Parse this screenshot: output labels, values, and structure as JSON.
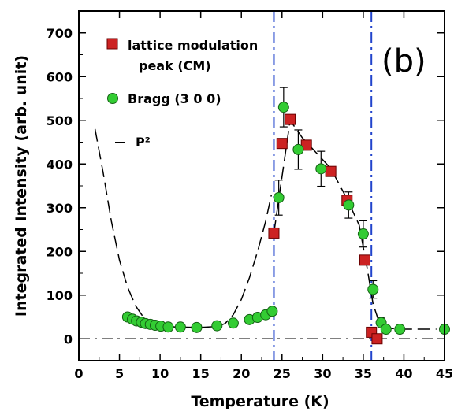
{
  "chart_data": {
    "type": "scatter",
    "panel_label": "(b)",
    "xlabel": "Temperature (K)",
    "ylabel": "Integrated Intensity (arb. unit)",
    "xlim": [
      0,
      45
    ],
    "ylim": [
      -50,
      750
    ],
    "xticks": [
      0,
      5,
      10,
      15,
      20,
      25,
      30,
      35,
      40,
      45
    ],
    "yticks": [
      0,
      100,
      200,
      300,
      400,
      500,
      600,
      700
    ],
    "vertical_lines": [
      24,
      36
    ],
    "horizontal_line": 0,
    "legend": {
      "placement": "top-left"
    },
    "colors": {
      "cm": "#cc2222",
      "bragg": "#33cc33",
      "vline": "#2244cc"
    },
    "series": [
      {
        "name": "lattice modulation",
        "name_line2": "peak (CM)",
        "marker": "square",
        "points": [
          {
            "x": 24.0,
            "y": 242,
            "err": 0
          },
          {
            "x": 25.0,
            "y": 447,
            "err": 0
          },
          {
            "x": 26.0,
            "y": 502,
            "err": 0
          },
          {
            "x": 28.0,
            "y": 443,
            "err": 0
          },
          {
            "x": 31.0,
            "y": 383,
            "err": 0
          },
          {
            "x": 33.0,
            "y": 317,
            "err": 0
          },
          {
            "x": 35.2,
            "y": 180,
            "err": 0
          },
          {
            "x": 36.0,
            "y": 15,
            "err": 0
          },
          {
            "x": 36.7,
            "y": 0,
            "err": 0
          }
        ]
      },
      {
        "name": "Bragg (3 0 0)",
        "marker": "circle",
        "points": [
          {
            "x": 6.0,
            "y": 50,
            "err": 0
          },
          {
            "x": 6.6,
            "y": 45,
            "err": 0
          },
          {
            "x": 7.1,
            "y": 41,
            "err": 0
          },
          {
            "x": 7.7,
            "y": 38,
            "err": 0
          },
          {
            "x": 8.2,
            "y": 35,
            "err": 0
          },
          {
            "x": 8.8,
            "y": 33,
            "err": 0
          },
          {
            "x": 9.4,
            "y": 31,
            "err": 0
          },
          {
            "x": 10.1,
            "y": 29,
            "err": 0
          },
          {
            "x": 11.0,
            "y": 27,
            "err": 0
          },
          {
            "x": 12.5,
            "y": 27,
            "err": 0
          },
          {
            "x": 14.5,
            "y": 26,
            "err": 0
          },
          {
            "x": 17.0,
            "y": 30,
            "err": 0
          },
          {
            "x": 19.0,
            "y": 36,
            "err": 0
          },
          {
            "x": 21.0,
            "y": 44,
            "err": 0
          },
          {
            "x": 22.0,
            "y": 49,
            "err": 0
          },
          {
            "x": 23.0,
            "y": 55,
            "err": 0
          },
          {
            "x": 23.8,
            "y": 63,
            "err": 0
          },
          {
            "x": 24.6,
            "y": 323,
            "err": 40
          },
          {
            "x": 25.2,
            "y": 530,
            "err": 45
          },
          {
            "x": 27.0,
            "y": 433,
            "err": 45
          },
          {
            "x": 29.8,
            "y": 389,
            "err": 40
          },
          {
            "x": 33.2,
            "y": 306,
            "err": 30
          },
          {
            "x": 35.0,
            "y": 240,
            "err": 30
          },
          {
            "x": 36.2,
            "y": 113,
            "err": 20
          },
          {
            "x": 37.2,
            "y": 37,
            "err": 12
          },
          {
            "x": 37.8,
            "y": 22,
            "err": 0
          },
          {
            "x": 39.5,
            "y": 22,
            "err": 0
          },
          {
            "x": 45.0,
            "y": 22,
            "err": 0
          }
        ]
      },
      {
        "name": "P²",
        "line_style": "dashed",
        "points": [
          {
            "x": 2.0,
            "y": 480
          },
          {
            "x": 3.0,
            "y": 380
          },
          {
            "x": 4.0,
            "y": 270
          },
          {
            "x": 5.0,
            "y": 180
          },
          {
            "x": 6.0,
            "y": 118
          },
          {
            "x": 7.0,
            "y": 75
          },
          {
            "x": 8.0,
            "y": 48
          },
          {
            "x": 10.0,
            "y": 30
          },
          {
            "x": 12.0,
            "y": 27
          },
          {
            "x": 15.0,
            "y": 26
          },
          {
            "x": 17.0,
            "y": 28
          },
          {
            "x": 18.0,
            "y": 35
          },
          {
            "x": 19.0,
            "y": 55
          },
          {
            "x": 20.0,
            "y": 90
          },
          {
            "x": 21.0,
            "y": 140
          },
          {
            "x": 22.0,
            "y": 200
          },
          {
            "x": 23.0,
            "y": 270
          },
          {
            "x": 23.7,
            "y": 330
          }
        ]
      },
      {
        "line_style": "dashed",
        "points": [
          {
            "x": 24.0,
            "y": 242
          },
          {
            "x": 26.0,
            "y": 500
          },
          {
            "x": 27.5,
            "y": 460
          },
          {
            "x": 29.0,
            "y": 430
          },
          {
            "x": 31.0,
            "y": 390
          },
          {
            "x": 33.0,
            "y": 320
          },
          {
            "x": 34.5,
            "y": 260
          },
          {
            "x": 35.5,
            "y": 160
          },
          {
            "x": 36.2,
            "y": 80
          },
          {
            "x": 37.0,
            "y": 35
          },
          {
            "x": 38.0,
            "y": 24
          },
          {
            "x": 40.0,
            "y": 22
          },
          {
            "x": 44.0,
            "y": 22
          }
        ]
      }
    ]
  }
}
